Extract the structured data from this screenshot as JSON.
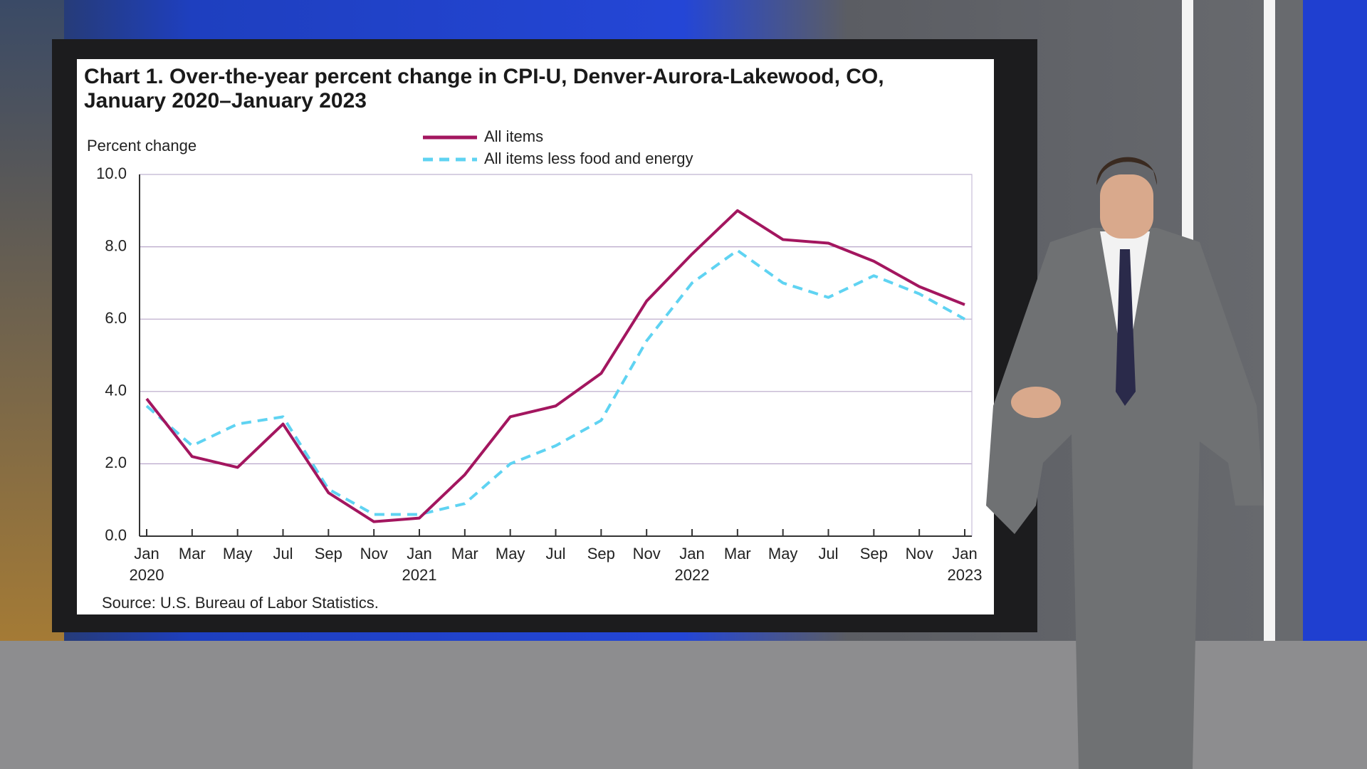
{
  "chart_data": {
    "type": "line",
    "title": "Chart 1. Over-the-year percent change in CPI-U, Denver-Aurora-Lakewood, CO, January 2020–January 2023",
    "y_label": "Percent change",
    "source": "Source: U.S. Bureau of Labor Statistics.",
    "categories": [
      "Jan 2020",
      "Mar",
      "May",
      "Jul",
      "Sep",
      "Nov",
      "Jan 2021",
      "Mar",
      "May",
      "Jul",
      "Sep",
      "Nov",
      "Jan 2022",
      "Mar",
      "May",
      "Jul",
      "Sep",
      "Nov",
      "Jan 2023"
    ],
    "series": [
      {
        "name": "All items",
        "color": "#a3165f",
        "dashed": false,
        "values": [
          3.8,
          2.2,
          1.9,
          3.1,
          1.2,
          0.4,
          0.5,
          1.7,
          3.3,
          3.6,
          4.5,
          6.5,
          7.8,
          9.0,
          8.2,
          8.1,
          7.6,
          6.9,
          6.4
        ]
      },
      {
        "name": "All items less food and energy",
        "color": "#5fd3f2",
        "dashed": true,
        "values": [
          3.6,
          2.5,
          3.1,
          3.3,
          1.3,
          0.6,
          0.6,
          0.9,
          2.0,
          2.5,
          3.2,
          5.4,
          7.0,
          7.9,
          7.0,
          6.6,
          7.2,
          6.7,
          6.0
        ]
      }
    ],
    "ylim": [
      0,
      10
    ],
    "yticks": [
      {
        "value": 0,
        "label": "0.0"
      },
      {
        "value": 2,
        "label": "2.0"
      },
      {
        "value": 4,
        "label": "4.0"
      },
      {
        "value": 6,
        "label": "6.0"
      },
      {
        "value": 8,
        "label": "8.0"
      },
      {
        "value": 10,
        "label": "10.0"
      }
    ],
    "grid": true
  }
}
